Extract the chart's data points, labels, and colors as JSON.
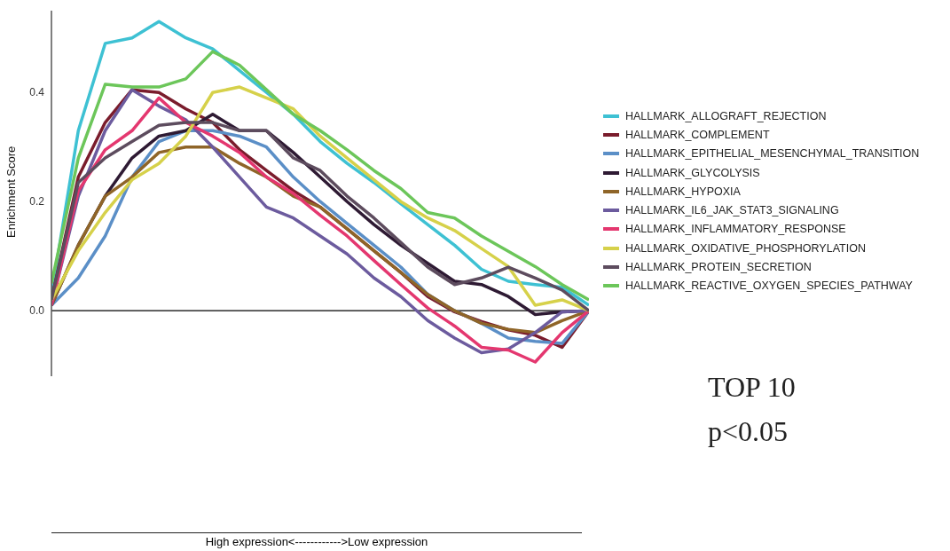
{
  "chart_data": {
    "type": "line",
    "ylabel": "Enrichment Score",
    "categories": [
      null,
      null,
      null,
      null,
      null,
      null,
      null,
      null,
      null,
      null,
      null,
      null,
      null,
      null,
      null,
      null,
      null,
      null,
      null,
      null,
      null
    ],
    "ylim": [
      -0.12,
      0.55
    ],
    "yticks": [
      {
        "value": 0,
        "label": "0.0"
      },
      {
        "value": 0.2,
        "label": "0.2"
      },
      {
        "value": 0.4,
        "label": "0.4"
      }
    ],
    "ref_lines": [
      {
        "axis": "y",
        "value": 0,
        "color": "#000000"
      }
    ],
    "legend": "right",
    "grid": false,
    "marker": "none",
    "line_style": "solid",
    "annotations": [
      "High expression<------------>Low expression",
      "TOP 10",
      "p<0.05"
    ],
    "series": [
      {
        "name": "HALLMARK_ALLOGRAFT_REJECTION",
        "color": "#3ec1d3",
        "values": [
          0.03,
          0.33,
          0.49,
          0.5,
          0.53,
          0.5,
          0.48,
          0.44,
          0.4,
          0.36,
          0.31,
          0.27,
          0.235,
          0.196,
          0.158,
          0.12,
          0.076,
          0.054,
          0.048,
          0.043,
          0.01
        ]
      },
      {
        "name": "HALLMARK_COMPLEMENT",
        "color": "#7a1c2c",
        "values": [
          0.02,
          0.245,
          0.345,
          0.405,
          0.4,
          0.37,
          0.345,
          0.295,
          0.257,
          0.22,
          0.19,
          0.15,
          0.11,
          0.07,
          0.026,
          -0.002,
          -0.02,
          -0.035,
          -0.045,
          -0.067,
          0.0
        ]
      },
      {
        "name": "HALLMARK_EPITHELIAL_MESENCHYMAL_TRANSITION",
        "color": "#5b8fc7",
        "values": [
          0.01,
          0.06,
          0.137,
          0.245,
          0.31,
          0.33,
          0.33,
          0.32,
          0.3,
          0.245,
          0.2,
          0.16,
          0.12,
          0.08,
          0.03,
          0.0,
          -0.023,
          -0.05,
          -0.056,
          -0.06,
          0.0
        ]
      },
      {
        "name": "HALLMARK_GLYCOLYSIS",
        "color": "#2e1a33",
        "values": [
          0.01,
          0.12,
          0.21,
          0.28,
          0.32,
          0.33,
          0.36,
          0.33,
          0.33,
          0.29,
          0.245,
          0.2,
          0.158,
          0.12,
          0.087,
          0.054,
          0.048,
          0.026,
          -0.007,
          -0.002,
          0.0
        ]
      },
      {
        "name": "HALLMARK_HYPOXIA",
        "color": "#8f6528",
        "values": [
          0.01,
          0.12,
          0.21,
          0.245,
          0.29,
          0.3,
          0.3,
          0.27,
          0.245,
          0.21,
          0.19,
          0.15,
          0.11,
          0.07,
          0.03,
          0.0,
          -0.023,
          -0.034,
          -0.04,
          -0.018,
          0.0
        ]
      },
      {
        "name": "HALLMARK_IL6_JAK_STAT3_SIGNALING",
        "color": "#6c5b9e",
        "values": [
          0.01,
          0.21,
          0.33,
          0.405,
          0.375,
          0.35,
          0.3,
          0.245,
          0.19,
          0.17,
          0.137,
          0.104,
          0.06,
          0.026,
          -0.018,
          -0.05,
          -0.077,
          -0.07,
          -0.04,
          -0.002,
          0.0
        ]
      },
      {
        "name": "HALLMARK_INFLAMMATORY_RESPONSE",
        "color": "#e4376f",
        "values": [
          0.01,
          0.22,
          0.295,
          0.33,
          0.39,
          0.345,
          0.32,
          0.29,
          0.245,
          0.215,
          0.175,
          0.137,
          0.092,
          0.048,
          0.005,
          -0.028,
          -0.067,
          -0.072,
          -0.094,
          -0.04,
          0.0
        ]
      },
      {
        "name": "HALLMARK_OXIDATIVE_PHOSPHORYLATION",
        "color": "#d6d14a",
        "values": [
          0.02,
          0.11,
          0.18,
          0.24,
          0.27,
          0.32,
          0.4,
          0.41,
          0.39,
          0.37,
          0.32,
          0.28,
          0.24,
          0.2,
          0.17,
          0.147,
          0.114,
          0.081,
          0.01,
          0.02,
          0.0
        ]
      },
      {
        "name": "HALLMARK_PROTEIN_SECRETION",
        "color": "#5d4c5e",
        "values": [
          0.02,
          0.235,
          0.28,
          0.31,
          0.34,
          0.345,
          0.345,
          0.33,
          0.33,
          0.28,
          0.257,
          0.21,
          0.17,
          0.125,
          0.08,
          0.048,
          0.06,
          0.08,
          0.06,
          0.038,
          0.0
        ]
      },
      {
        "name": "HALLMARK_REACTIVE_OXYGEN_SPECIES_PATHWAY",
        "color": "#6cc65a",
        "values": [
          0.05,
          0.28,
          0.415,
          0.41,
          0.41,
          0.425,
          0.475,
          0.45,
          0.405,
          0.36,
          0.33,
          0.295,
          0.257,
          0.224,
          0.18,
          0.17,
          0.137,
          0.109,
          0.081,
          0.048,
          0.02
        ]
      }
    ]
  }
}
